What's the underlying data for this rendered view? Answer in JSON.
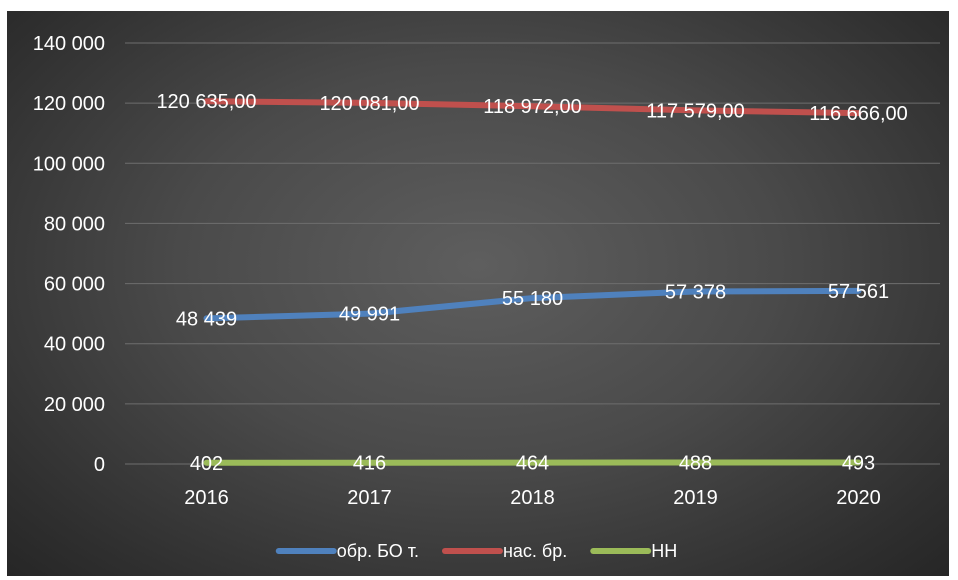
{
  "chart_data": {
    "type": "line",
    "categories": [
      "2016",
      "2017",
      "2018",
      "2019",
      "2020"
    ],
    "series": [
      {
        "name": "обр. БО т.",
        "color": "#4f81bd",
        "values": [
          48439,
          49991,
          55180,
          57378,
          57561
        ],
        "labels": [
          "48 439",
          "49 991",
          "55 180",
          "57 378",
          "57 561"
        ]
      },
      {
        "name": "нас. бр.",
        "color": "#c0504d",
        "values": [
          120635,
          120081,
          118972,
          117579,
          116666
        ],
        "labels": [
          "120 635,00",
          "120 081,00",
          "118 972,00",
          "117 579,00",
          "116 666,00"
        ]
      },
      {
        "name": "НН",
        "color": "#9bbb59",
        "values": [
          402,
          416,
          464,
          488,
          493
        ],
        "labels": [
          "402",
          "416",
          "464",
          "488",
          "493"
        ]
      }
    ],
    "ylim": [
      0,
      140000
    ],
    "yticks": [
      0,
      20000,
      40000,
      60000,
      80000,
      100000,
      120000,
      140000
    ],
    "ytick_labels": [
      "0",
      "20 000",
      "40 000",
      "60 000",
      "80 000",
      "100 000",
      "120 000",
      "140 000"
    ],
    "grid": true,
    "legend_position": "bottom",
    "background": "#404040"
  }
}
